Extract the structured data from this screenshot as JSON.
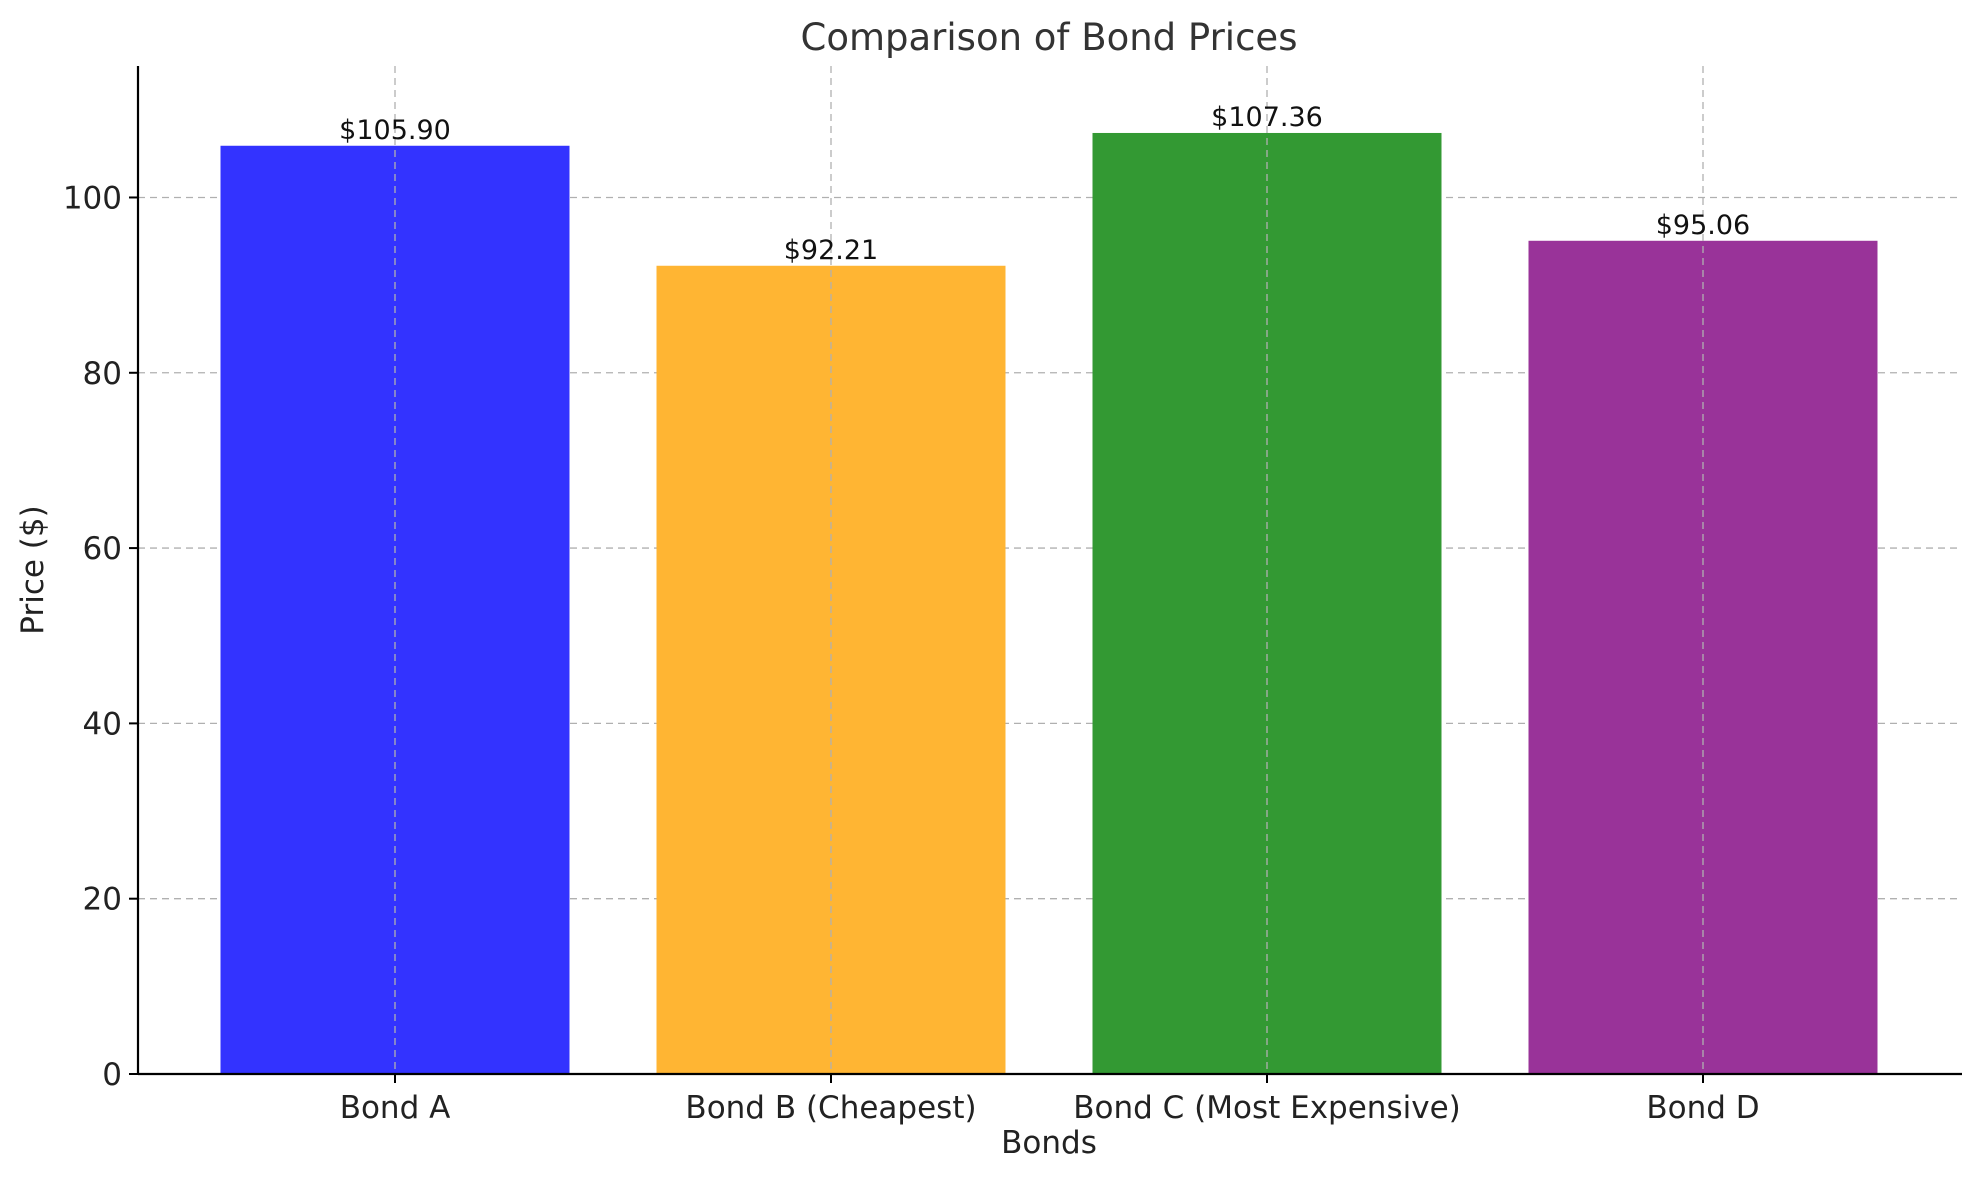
{
  "chart_data": {
    "type": "bar",
    "title": "Comparison of Bond Prices",
    "xlabel": "Bonds",
    "ylabel": "Price ($)",
    "categories": [
      "Bond A",
      "Bond B (Cheapest)",
      "Bond C (Most Expensive)",
      "Bond D"
    ],
    "values": [
      105.9,
      92.21,
      107.36,
      95.06
    ],
    "value_labels": [
      "$105.90",
      "$92.21",
      "$107.36",
      "$95.06"
    ],
    "colors": [
      "#3333ff",
      "#ffb533",
      "#339933",
      "#993399"
    ],
    "ylim": [
      0,
      115
    ],
    "yticks": [
      0,
      20,
      40,
      60,
      80,
      100
    ],
    "grid": true
  }
}
